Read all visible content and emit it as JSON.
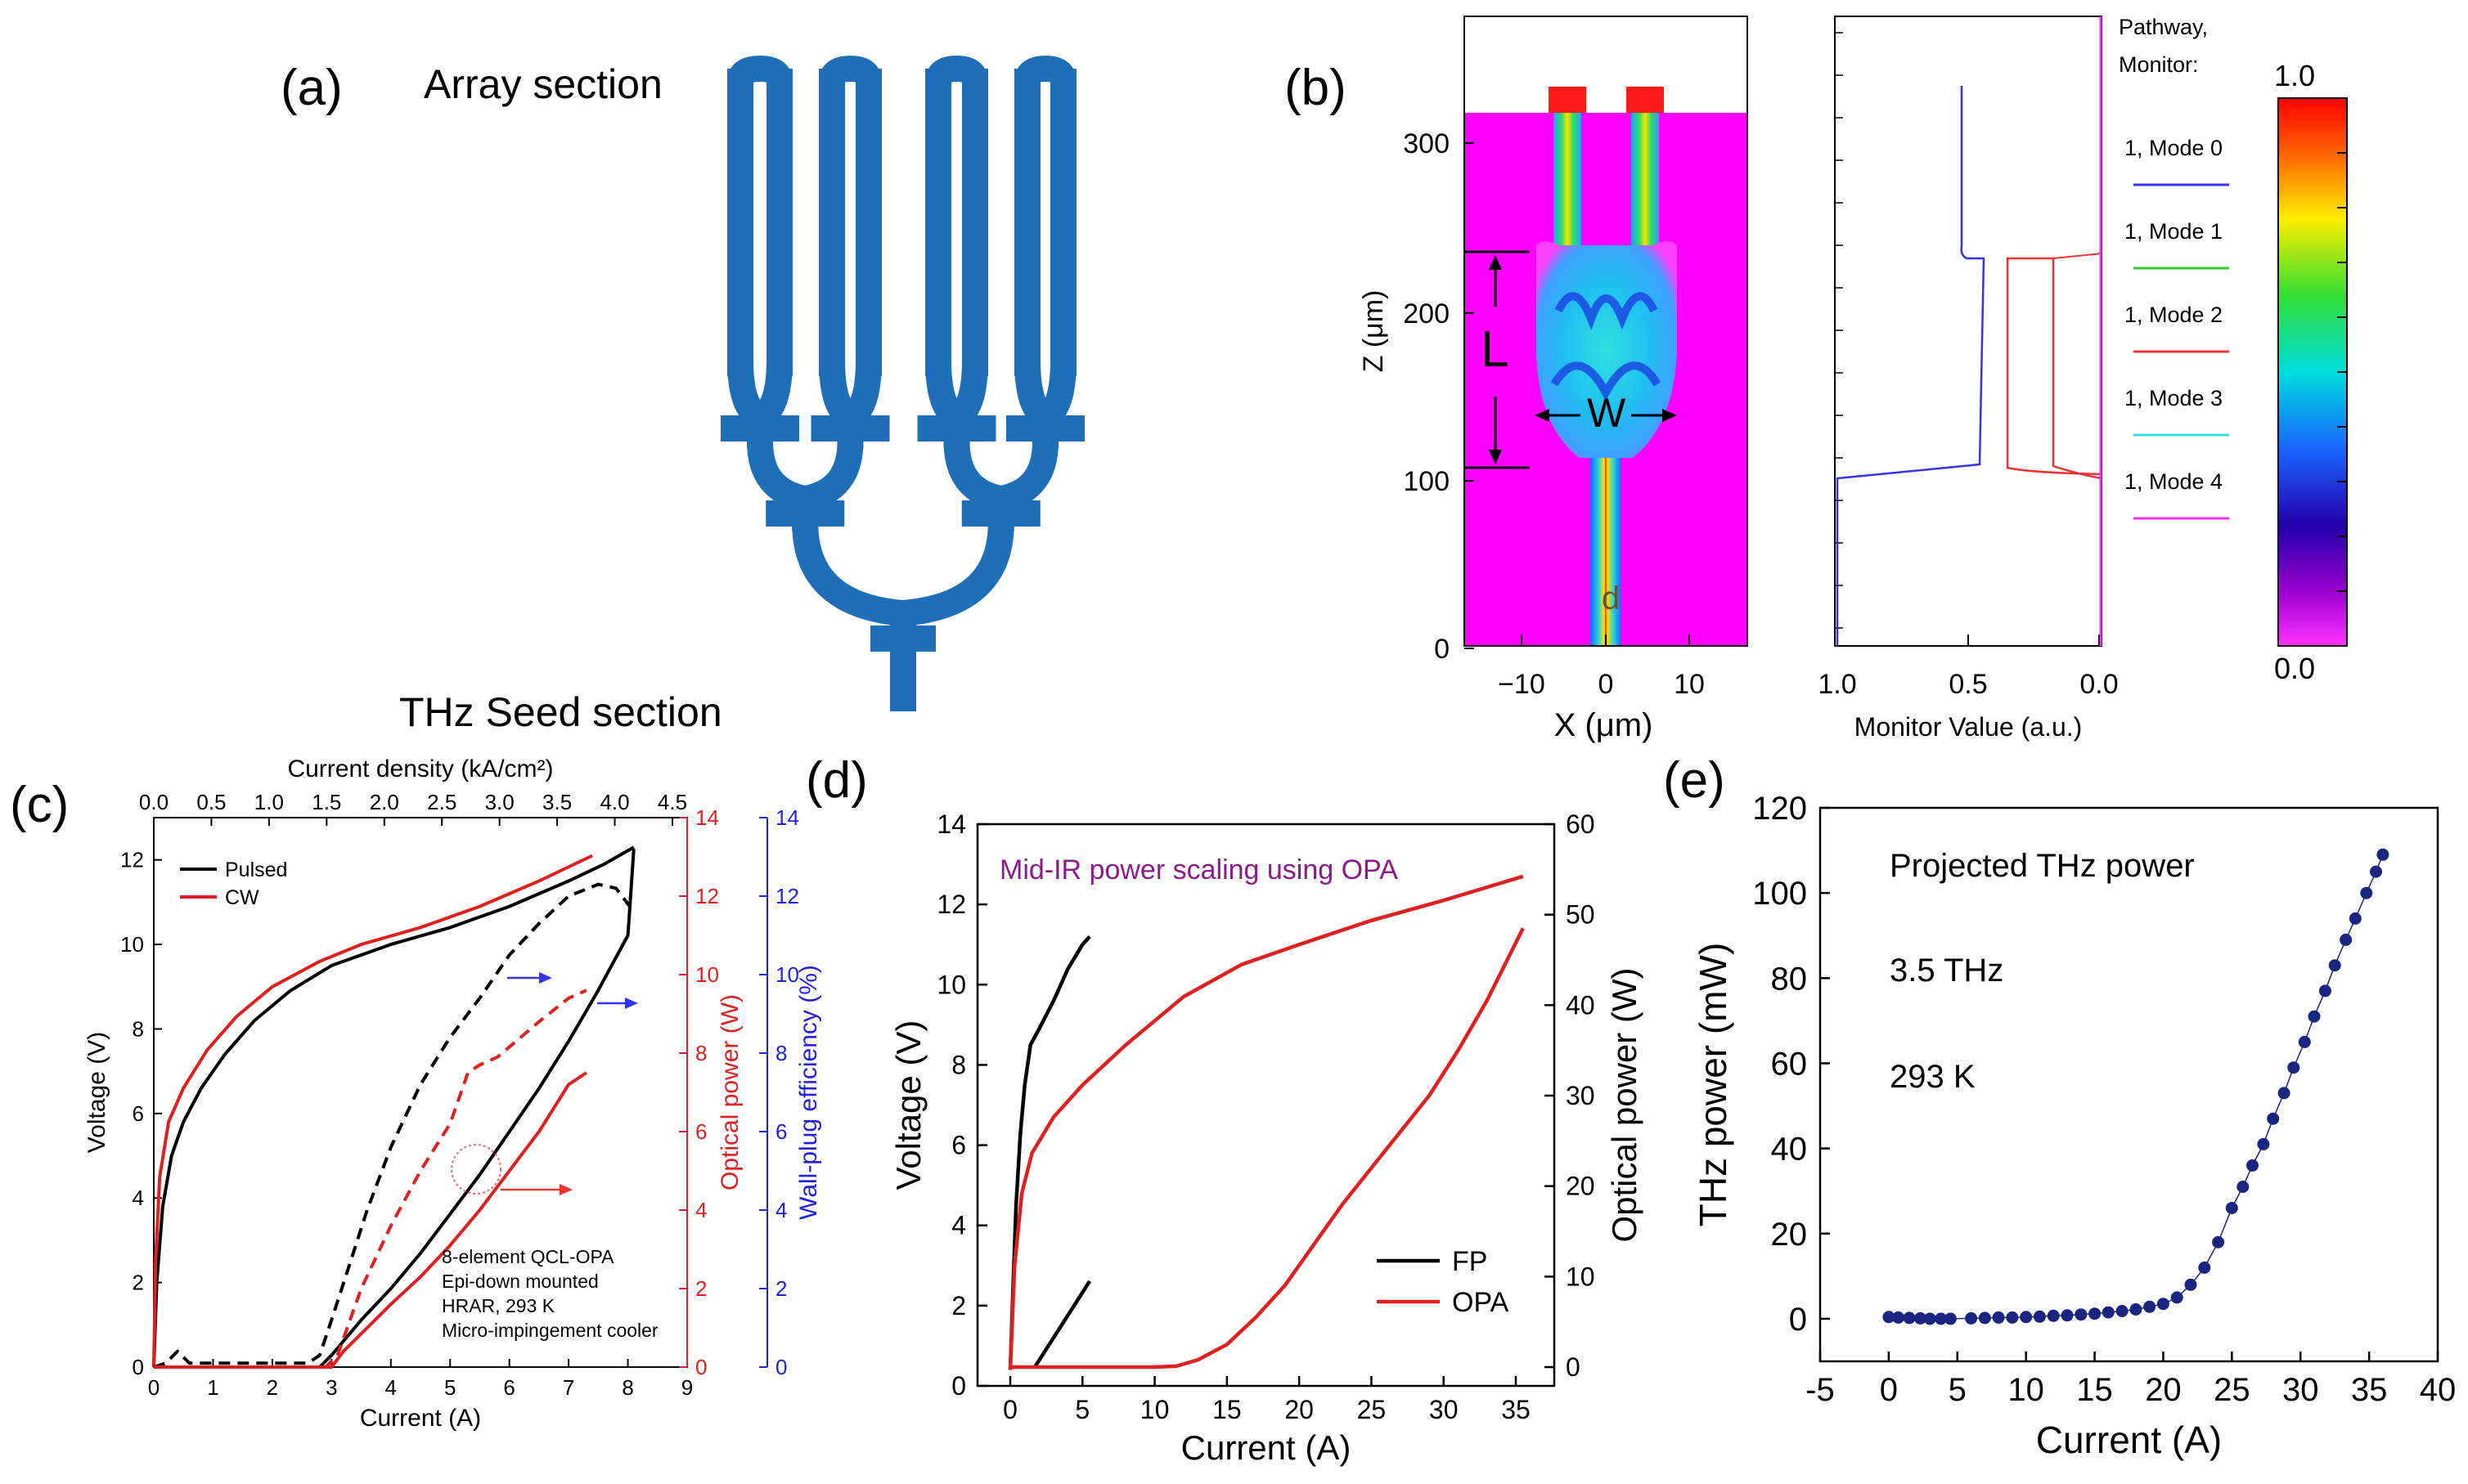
{
  "panel_labels": {
    "a": "(a)",
    "b": "(b)",
    "c": "(c)",
    "d": "(d)",
    "e": "(e)"
  },
  "panel_a": {
    "array_label": "Array section",
    "seed_label": "THz Seed section",
    "waveguide_color": "#1f6fb8"
  },
  "panel_b": {
    "sim": {
      "ylabel": "Z (μm)",
      "xlabel": "X (μm)",
      "yticks": [
        "300",
        "200",
        "100",
        "0"
      ],
      "xticks": [
        "−10",
        "0",
        "10"
      ],
      "L_label": "L",
      "W_label": "W",
      "d_label": "d"
    },
    "monitor": {
      "xlabel": "Monitor Value (a.u.)",
      "xticks": [
        "1.0",
        "0.5",
        "0.0"
      ],
      "legend_title_1": "Pathway,",
      "legend_title_2": "Monitor:",
      "legend": [
        {
          "label": "1, Mode 0",
          "color": "#3333ee"
        },
        {
          "label": "1, Mode 1",
          "color": "#33cc33"
        },
        {
          "label": "1, Mode 2",
          "color": "#ee3333"
        },
        {
          "label": "1, Mode 3",
          "color": "#33dddd"
        },
        {
          "label": "1, Mode 4",
          "color": "#ee33ee"
        }
      ]
    },
    "colorbar": {
      "max": "1.0",
      "min": "0.0"
    }
  },
  "chart_data": [
    {
      "type": "line",
      "panel": "c",
      "xlabel": "Current (A)",
      "ylabel": "Voltage (V)",
      "ylabel2": "Optical power (W)",
      "ylabel3": "Wall-plug efficiency (%)",
      "top_xlabel": "Current density (kA/cm²)",
      "xlim": [
        0,
        9
      ],
      "ylim": [
        0,
        13
      ],
      "y2lim": [
        0,
        14
      ],
      "x_ticks": [
        "0",
        "1",
        "2",
        "3",
        "4",
        "5",
        "6",
        "7",
        "8",
        "9"
      ],
      "y_ticks": [
        "0",
        "2",
        "4",
        "6",
        "8",
        "10",
        "12"
      ],
      "y2_ticks": [
        "0",
        "2",
        "4",
        "6",
        "8",
        "10",
        "12",
        "14"
      ],
      "y3_ticks": [
        "0",
        "2",
        "4",
        "6",
        "8",
        "10",
        "12",
        "14"
      ],
      "top_ticks": [
        "0.0",
        "0.5",
        "1.0",
        "1.5",
        "2.0",
        "2.5",
        "3.0",
        "3.5",
        "4.0",
        "4.5"
      ],
      "legend": [
        {
          "name": "Pulsed",
          "color": "#000000"
        },
        {
          "name": "CW",
          "color": "#e02020"
        }
      ],
      "annotation_lines": [
        "8-element QCL-OPA",
        "Epi-down mounted",
        "HRAR, 293 K",
        "Micro-impingement cooler"
      ],
      "series": [
        {
          "name": "Pulsed",
          "kind": "voltage",
          "color": "#000000",
          "dash": false,
          "points": [
            [
              0,
              0
            ],
            [
              0.05,
              2
            ],
            [
              0.15,
              3.8
            ],
            [
              0.3,
              5
            ],
            [
              0.5,
              5.8
            ],
            [
              0.8,
              6.6
            ],
            [
              1.2,
              7.4
            ],
            [
              1.7,
              8.2
            ],
            [
              2.3,
              8.9
            ],
            [
              3,
              9.5
            ],
            [
              4,
              10
            ],
            [
              5,
              10.4
            ],
            [
              6,
              10.9
            ],
            [
              7,
              11.5
            ],
            [
              7.6,
              11.9
            ],
            [
              8.1,
              12.3
            ]
          ]
        },
        {
          "name": "CW",
          "kind": "voltage",
          "color": "#e02020",
          "dash": false,
          "points": [
            [
              0,
              0
            ],
            [
              0.03,
              2.5
            ],
            [
              0.1,
              4.5
            ],
            [
              0.25,
              5.8
            ],
            [
              0.5,
              6.6
            ],
            [
              0.9,
              7.5
            ],
            [
              1.4,
              8.3
            ],
            [
              2,
              9
            ],
            [
              2.8,
              9.6
            ],
            [
              3.5,
              10
            ],
            [
              4.5,
              10.4
            ],
            [
              5.5,
              10.9
            ],
            [
              6.5,
              11.5
            ],
            [
              7.4,
              12.1
            ]
          ]
        },
        {
          "name": "Pulsed",
          "kind": "power",
          "color": "#000000",
          "dash": false,
          "points": [
            [
              0,
              0
            ],
            [
              2.8,
              0
            ],
            [
              3.0,
              0.3
            ],
            [
              3.5,
              1.2
            ],
            [
              4,
              2
            ],
            [
              4.5,
              2.9
            ],
            [
              5,
              3.9
            ],
            [
              5.5,
              4.9
            ],
            [
              6,
              6
            ],
            [
              6.5,
              7.1
            ],
            [
              7,
              8.3
            ],
            [
              7.5,
              9.6
            ],
            [
              8,
              11
            ],
            [
              8.1,
              13.2
            ]
          ]
        },
        {
          "name": "CW",
          "kind": "power",
          "color": "#e02020",
          "dash": false,
          "points": [
            [
              0,
              0
            ],
            [
              3.0,
              0
            ],
            [
              3.2,
              0.4
            ],
            [
              3.6,
              1
            ],
            [
              4,
              1.6
            ],
            [
              4.5,
              2.3
            ],
            [
              5,
              3.1
            ],
            [
              5.5,
              4
            ],
            [
              6,
              5
            ],
            [
              6.5,
              6
            ],
            [
              7,
              7.2
            ],
            [
              7.3,
              7.5
            ]
          ]
        },
        {
          "name": "Pulsed",
          "kind": "efficiency",
          "color": "#000000",
          "dash": true,
          "points": [
            [
              0,
              0
            ],
            [
              0.2,
              0.1
            ],
            [
              0.4,
              0.4
            ],
            [
              0.6,
              0.1
            ],
            [
              2.6,
              0.1
            ],
            [
              2.8,
              0.3
            ],
            [
              3,
              1.2
            ],
            [
              3.3,
              2.6
            ],
            [
              3.6,
              4
            ],
            [
              4,
              5.6
            ],
            [
              4.5,
              7.2
            ],
            [
              5,
              8.4
            ],
            [
              5.5,
              9.4
            ],
            [
              6,
              10.5
            ],
            [
              6.5,
              11.3
            ],
            [
              7,
              12
            ],
            [
              7.5,
              12.3
            ],
            [
              7.8,
              12.2
            ],
            [
              8.1,
              11.6
            ]
          ]
        },
        {
          "name": "CW",
          "kind": "efficiency",
          "color": "#e02020",
          "dash": true,
          "points": [
            [
              0,
              0
            ],
            [
              2.9,
              0
            ],
            [
              3.1,
              0.3
            ],
            [
              3.5,
              2
            ],
            [
              4,
              3.6
            ],
            [
              4.5,
              5
            ],
            [
              5,
              6.2
            ],
            [
              5.3,
              7.5
            ],
            [
              5.5,
              7.7
            ],
            [
              5.8,
              7.9
            ],
            [
              6.5,
              8.8
            ],
            [
              7,
              9.4
            ],
            [
              7.3,
              9.6
            ]
          ]
        }
      ]
    },
    {
      "type": "line",
      "panel": "d",
      "xlabel": "Current (A)",
      "ylabel": "Voltage (V)",
      "ylabel2": "Optical power (W)",
      "annotation": "Mid-IR power scaling using OPA",
      "annotation_color": "#8b1a8b",
      "xlim": [
        -2,
        37
      ],
      "ylim": [
        0,
        14
      ],
      "y2lim": [
        -1,
        60
      ],
      "x_ticks": [
        "0",
        "5",
        "10",
        "15",
        "20",
        "25",
        "30",
        "35"
      ],
      "y_ticks": [
        "0",
        "2",
        "4",
        "6",
        "8",
        "10",
        "12",
        "14"
      ],
      "y2_ticks": [
        "0",
        "10",
        "20",
        "30",
        "40",
        "50",
        "60"
      ],
      "legend": [
        {
          "name": "FP",
          "color": "#000000"
        },
        {
          "name": "OPA",
          "color": "#e02020"
        }
      ],
      "series": [
        {
          "name": "FP",
          "kind": "voltage",
          "color": "#000000",
          "points": [
            [
              0,
              0.4
            ],
            [
              0.2,
              2.5
            ],
            [
              0.4,
              4.5
            ],
            [
              0.7,
              6.3
            ],
            [
              1,
              7.5
            ],
            [
              1.4,
              8.5
            ],
            [
              2,
              8.9
            ],
            [
              3,
              9.6
            ],
            [
              4,
              10.4
            ],
            [
              5,
              11
            ],
            [
              5.5,
              11.2
            ]
          ]
        },
        {
          "name": "OPA",
          "kind": "voltage",
          "color": "#e02020",
          "points": [
            [
              0,
              0.4
            ],
            [
              0.3,
              3
            ],
            [
              0.8,
              4.8
            ],
            [
              1.5,
              5.8
            ],
            [
              3,
              6.7
            ],
            [
              5,
              7.5
            ],
            [
              8,
              8.5
            ],
            [
              12,
              9.7
            ],
            [
              16,
              10.5
            ],
            [
              20,
              11
            ],
            [
              25,
              11.6
            ],
            [
              30,
              12.1
            ],
            [
              35.5,
              12.7
            ]
          ]
        },
        {
          "name": "FP",
          "kind": "power",
          "color": "#000000",
          "points": [
            [
              1.7,
              0
            ],
            [
              2.5,
              2
            ],
            [
              3.5,
              4.5
            ],
            [
              4.5,
              7
            ],
            [
              5.5,
              9.5
            ]
          ]
        },
        {
          "name": "OPA",
          "kind": "power",
          "color": "#e02020",
          "points": [
            [
              0,
              0
            ],
            [
              10,
              0
            ],
            [
              11.5,
              0.1
            ],
            [
              13,
              0.8
            ],
            [
              15,
              2.5
            ],
            [
              17,
              5.5
            ],
            [
              19,
              9
            ],
            [
              21,
              13.5
            ],
            [
              23,
              18
            ],
            [
              25,
              22
            ],
            [
              27,
              26
            ],
            [
              29,
              30
            ],
            [
              31,
              35
            ],
            [
              33,
              40.5
            ],
            [
              35.5,
              48.5
            ]
          ]
        }
      ]
    },
    {
      "type": "scatter",
      "panel": "e",
      "xlabel": "Current (A)",
      "ylabel": "THz power (mW)",
      "annotations": [
        "Projected THz power",
        "3.5 THz",
        "293 K"
      ],
      "xlim": [
        -5,
        40
      ],
      "ylim": [
        -10,
        120
      ],
      "x_ticks": [
        "-5",
        "0",
        "5",
        "10",
        "15",
        "20",
        "25",
        "30",
        "35",
        "40"
      ],
      "y_ticks": [
        "0",
        "20",
        "40",
        "60",
        "80",
        "100",
        "120"
      ],
      "series": [
        {
          "name": "",
          "color": "#1a2580",
          "x": [
            0,
            0.7,
            1.5,
            2.3,
            3,
            3.8,
            4.5,
            6,
            7,
            8,
            9,
            10,
            11,
            12,
            13,
            14,
            15,
            16,
            17,
            18,
            19,
            20,
            21,
            22,
            23,
            24,
            25,
            25.8,
            26.5,
            27.3,
            28,
            28.8,
            29.5,
            30.3,
            31,
            31.8,
            32.5,
            33.3,
            34,
            34.8,
            35.5,
            36
          ],
          "y": [
            0.4,
            0.3,
            0.2,
            0.1,
            0,
            0,
            0,
            0.1,
            0.2,
            0.3,
            0.3,
            0.4,
            0.5,
            0.7,
            0.8,
            1,
            1.2,
            1.5,
            1.8,
            2.2,
            2.8,
            3.5,
            5,
            8,
            12,
            18,
            26,
            31,
            36,
            41,
            47,
            53,
            59,
            65,
            71,
            77,
            83,
            89,
            94,
            100,
            105,
            109
          ]
        }
      ]
    }
  ]
}
